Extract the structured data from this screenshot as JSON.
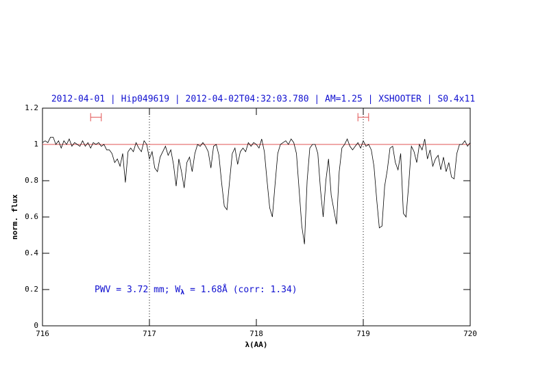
{
  "chart_data": {
    "type": "line",
    "title": "2012-04-01 | Hip049619 | 2012-04-02T04:32:03.780 | AM=1.25 | XSHOOTER | S0.4x11",
    "xlabel": "λ(AA)",
    "ylabel": "norm. flux",
    "annotation": [
      "PWV = 3.72 mm; W",
      "λ",
      " = 1.68Å (corr: 1.34)"
    ],
    "xlim": [
      716,
      720
    ],
    "xticks": [
      716,
      717,
      718,
      719,
      720
    ],
    "ylim": [
      0,
      1.2
    ],
    "yticks": [
      0,
      0.2,
      0.4,
      0.6,
      0.8,
      1,
      1.2
    ],
    "continuum": 1,
    "continuum_color": "#e05050",
    "vlines": [
      717,
      719
    ],
    "windows": [
      [
        716.45,
        716.55
      ],
      [
        718.95,
        719.05
      ]
    ],
    "window_level": 1.15,
    "window_color": "#e05050",
    "series": [
      {
        "color": "#000000",
        "x": [
          716,
          716.025,
          716.05,
          716.075,
          716.1,
          716.125,
          716.15,
          716.175,
          716.2,
          716.225,
          716.25,
          716.275,
          716.3,
          716.325,
          716.35,
          716.375,
          716.4,
          716.425,
          716.45,
          716.475,
          716.5,
          716.525,
          716.55,
          716.575,
          716.6,
          716.625,
          716.65,
          716.675,
          716.7,
          716.725,
          716.75,
          716.775,
          716.8,
          716.825,
          716.85,
          716.875,
          716.9,
          716.925,
          716.95,
          716.975,
          717,
          717.025,
          717.05,
          717.075,
          717.1,
          717.125,
          717.15,
          717.175,
          717.2,
          717.225,
          717.25,
          717.275,
          717.3,
          717.325,
          717.35,
          717.375,
          717.4,
          717.425,
          717.45,
          717.475,
          717.5,
          717.525,
          717.55,
          717.575,
          717.6,
          717.625,
          717.65,
          717.675,
          717.7,
          717.725,
          717.75,
          717.775,
          717.8,
          717.825,
          717.85,
          717.875,
          717.9,
          717.925,
          717.95,
          717.975,
          718,
          718.025,
          718.05,
          718.075,
          718.1,
          718.125,
          718.15,
          718.175,
          718.2,
          718.225,
          718.25,
          718.275,
          718.3,
          718.325,
          718.35,
          718.375,
          718.4,
          718.425,
          718.45,
          718.475,
          718.5,
          718.525,
          718.55,
          718.575,
          718.6,
          718.625,
          718.65,
          718.675,
          718.7,
          718.725,
          718.75,
          718.775,
          718.8,
          718.825,
          718.85,
          718.875,
          718.9,
          718.925,
          718.95,
          718.975,
          719,
          719.025,
          719.05,
          719.075,
          719.1,
          719.125,
          719.15,
          719.175,
          719.2,
          719.225,
          719.25,
          719.275,
          719.3,
          719.325,
          719.35,
          719.375,
          719.4,
          719.425,
          719.45,
          719.475,
          719.5,
          719.525,
          719.55,
          719.575,
          719.6,
          719.625,
          719.65,
          719.675,
          719.7,
          719.725,
          719.75,
          719.775,
          719.8,
          719.825,
          719.85,
          719.875,
          719.9,
          719.925,
          719.95,
          719.975,
          720
        ],
        "values": [
          1.01,
          1.02,
          1.01,
          1.04,
          1.04,
          1.0,
          1.02,
          0.98,
          1.02,
          1.0,
          1.03,
          0.99,
          1.01,
          1.0,
          0.99,
          1.02,
          0.99,
          1.01,
          0.98,
          1.01,
          1.0,
          1.01,
          0.99,
          1.0,
          0.97,
          0.97,
          0.95,
          0.9,
          0.92,
          0.88,
          0.95,
          0.79,
          0.96,
          0.98,
          0.96,
          1.01,
          0.98,
          0.96,
          1.02,
          1.0,
          0.92,
          0.96,
          0.87,
          0.85,
          0.93,
          0.96,
          0.99,
          0.94,
          0.97,
          0.89,
          0.77,
          0.92,
          0.85,
          0.76,
          0.9,
          0.93,
          0.85,
          0.95,
          1.0,
          0.99,
          1.01,
          0.99,
          0.96,
          0.87,
          0.99,
          1.0,
          0.94,
          0.79,
          0.66,
          0.64,
          0.8,
          0.95,
          0.98,
          0.89,
          0.96,
          0.98,
          0.96,
          1.01,
          0.99,
          1.01,
          1.0,
          0.98,
          1.03,
          0.96,
          0.8,
          0.65,
          0.6,
          0.78,
          0.95,
          1.0,
          1.01,
          1.02,
          1.0,
          1.03,
          1.01,
          0.95,
          0.75,
          0.55,
          0.45,
          0.8,
          0.98,
          1.0,
          1.0,
          0.95,
          0.75,
          0.6,
          0.8,
          0.92,
          0.72,
          0.64,
          0.56,
          0.85,
          0.98,
          1.0,
          1.03,
          0.99,
          0.97,
          0.99,
          1.01,
          0.98,
          1.02,
          0.99,
          1.0,
          0.97,
          0.88,
          0.7,
          0.54,
          0.55,
          0.77,
          0.86,
          0.98,
          0.99,
          0.9,
          0.86,
          0.95,
          0.62,
          0.6,
          0.78,
          0.99,
          0.96,
          0.9,
          1.0,
          0.97,
          1.03,
          0.92,
          0.97,
          0.88,
          0.92,
          0.94,
          0.86,
          0.93,
          0.85,
          0.9,
          0.82,
          0.81,
          0.95,
          1.0,
          1.0,
          1.02,
          0.99,
          1.01
        ]
      }
    ]
  }
}
